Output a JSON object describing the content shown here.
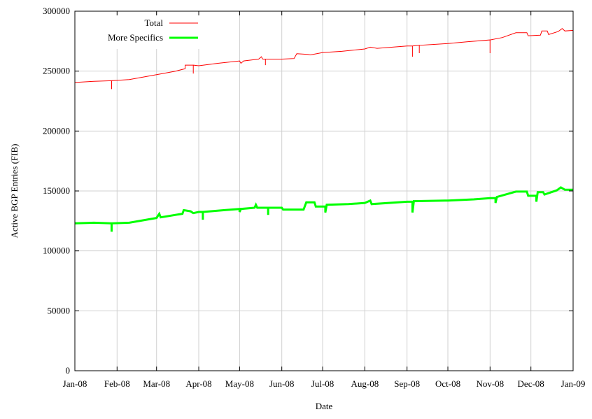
{
  "chart_data": {
    "type": "line",
    "title": "",
    "xlabel": "Date",
    "ylabel": "Active BGP Entries (FIB)",
    "xlim": [
      "2008-01-01",
      "2009-01-01"
    ],
    "ylim": [
      0,
      300000
    ],
    "grid": true,
    "legend_position": "top-left",
    "x_ticks": [
      {
        "date": "2008-01-01",
        "label": "Jan-08"
      },
      {
        "date": "2008-02-01",
        "label": "Feb-08"
      },
      {
        "date": "2008-03-01",
        "label": "Mar-08"
      },
      {
        "date": "2008-04-01",
        "label": "Apr-08"
      },
      {
        "date": "2008-05-01",
        "label": "May-08"
      },
      {
        "date": "2008-06-01",
        "label": "Jun-08"
      },
      {
        "date": "2008-07-01",
        "label": "Jul-08"
      },
      {
        "date": "2008-08-01",
        "label": "Aug-08"
      },
      {
        "date": "2008-09-01",
        "label": "Sep-08"
      },
      {
        "date": "2008-10-01",
        "label": "Oct-08"
      },
      {
        "date": "2008-11-01",
        "label": "Nov-08"
      },
      {
        "date": "2008-12-01",
        "label": "Dec-08"
      },
      {
        "date": "2009-01-01",
        "label": "Jan-09"
      }
    ],
    "y_ticks": [
      {
        "value": 0,
        "label": "0"
      },
      {
        "value": 50000,
        "label": "50000"
      },
      {
        "value": 100000,
        "label": "100000"
      },
      {
        "value": 150000,
        "label": "150000"
      },
      {
        "value": 200000,
        "label": "200000"
      },
      {
        "value": 250000,
        "label": "250000"
      },
      {
        "value": 300000,
        "label": "300000"
      }
    ],
    "series": [
      {
        "name": "Total",
        "color": "#ff0000",
        "points": [
          [
            "2008-01-01",
            240500
          ],
          [
            "2008-01-15",
            241500
          ],
          [
            "2008-01-28",
            242000
          ],
          [
            "2008-01-28",
            235000
          ],
          [
            "2008-01-28",
            242000
          ],
          [
            "2008-02-10",
            243000
          ],
          [
            "2008-03-01",
            247000
          ],
          [
            "2008-03-15",
            250000
          ],
          [
            "2008-03-22",
            252000
          ],
          [
            "2008-03-22",
            255000
          ],
          [
            "2008-03-28",
            255000
          ],
          [
            "2008-03-28",
            248000
          ],
          [
            "2008-03-28",
            255000
          ],
          [
            "2008-04-01",
            254500
          ],
          [
            "2008-04-15",
            256500
          ],
          [
            "2008-05-01",
            258500
          ],
          [
            "2008-05-02",
            256500
          ],
          [
            "2008-05-04",
            258500
          ],
          [
            "2008-05-15",
            260000
          ],
          [
            "2008-05-17",
            262000
          ],
          [
            "2008-05-18",
            260000
          ],
          [
            "2008-05-20",
            260000
          ],
          [
            "2008-05-20",
            255000
          ],
          [
            "2008-05-20",
            260000
          ],
          [
            "2008-06-01",
            260000
          ],
          [
            "2008-06-10",
            260500
          ],
          [
            "2008-06-12",
            264500
          ],
          [
            "2008-06-20",
            264000
          ],
          [
            "2008-06-22",
            263500
          ],
          [
            "2008-07-01",
            265500
          ],
          [
            "2008-07-15",
            266500
          ],
          [
            "2008-08-01",
            268500
          ],
          [
            "2008-08-05",
            270000
          ],
          [
            "2008-08-10",
            269000
          ],
          [
            "2008-09-01",
            271000
          ],
          [
            "2008-09-05",
            271000
          ],
          [
            "2008-09-05",
            262000
          ],
          [
            "2008-09-05",
            271000
          ],
          [
            "2008-09-10",
            271500
          ],
          [
            "2008-09-10",
            265000
          ],
          [
            "2008-09-10",
            271500
          ],
          [
            "2008-10-01",
            273000
          ],
          [
            "2008-10-15",
            274500
          ],
          [
            "2008-11-01",
            276000
          ],
          [
            "2008-11-01",
            265000
          ],
          [
            "2008-11-01",
            276000
          ],
          [
            "2008-11-10",
            278000
          ],
          [
            "2008-11-20",
            282000
          ],
          [
            "2008-11-28",
            282000
          ],
          [
            "2008-11-29",
            279500
          ],
          [
            "2008-12-08",
            280000
          ],
          [
            "2008-12-09",
            283500
          ],
          [
            "2008-12-13",
            283500
          ],
          [
            "2008-12-14",
            280500
          ],
          [
            "2008-12-21",
            283000
          ],
          [
            "2008-12-24",
            285500
          ],
          [
            "2008-12-26",
            283500
          ],
          [
            "2009-01-01",
            284000
          ]
        ]
      },
      {
        "name": "More Specifics",
        "color": "#00ff00",
        "points": [
          [
            "2008-01-01",
            123000
          ],
          [
            "2008-01-15",
            123500
          ],
          [
            "2008-01-28",
            123000
          ],
          [
            "2008-01-28",
            116000
          ],
          [
            "2008-01-28",
            123000
          ],
          [
            "2008-02-10",
            123500
          ],
          [
            "2008-03-01",
            127500
          ],
          [
            "2008-03-03",
            131000
          ],
          [
            "2008-03-04",
            128000
          ],
          [
            "2008-03-20",
            131000
          ],
          [
            "2008-03-21",
            134000
          ],
          [
            "2008-03-26",
            133000
          ],
          [
            "2008-03-28",
            131500
          ],
          [
            "2008-04-01",
            132500
          ],
          [
            "2008-04-04",
            132500
          ],
          [
            "2008-04-04",
            126000
          ],
          [
            "2008-04-04",
            132500
          ],
          [
            "2008-04-20",
            134000
          ],
          [
            "2008-05-01",
            135000
          ],
          [
            "2008-05-01",
            132500
          ],
          [
            "2008-05-02",
            135000
          ],
          [
            "2008-05-12",
            136000
          ],
          [
            "2008-05-13",
            138500
          ],
          [
            "2008-05-14",
            136000
          ],
          [
            "2008-05-22",
            136000
          ],
          [
            "2008-05-22",
            130000
          ],
          [
            "2008-05-22",
            136000
          ],
          [
            "2008-06-01",
            136000
          ],
          [
            "2008-06-02",
            134500
          ],
          [
            "2008-06-17",
            134500
          ],
          [
            "2008-06-19",
            140500
          ],
          [
            "2008-06-25",
            140500
          ],
          [
            "2008-06-26",
            137000
          ],
          [
            "2008-07-01",
            137000
          ],
          [
            "2008-07-03",
            137000
          ],
          [
            "2008-07-03",
            132000
          ],
          [
            "2008-07-04",
            138500
          ],
          [
            "2008-07-20",
            139000
          ],
          [
            "2008-08-01",
            140000
          ],
          [
            "2008-08-05",
            142000
          ],
          [
            "2008-08-06",
            139000
          ],
          [
            "2008-09-01",
            141000
          ],
          [
            "2008-09-05",
            141000
          ],
          [
            "2008-09-05",
            132000
          ],
          [
            "2008-09-06",
            141500
          ],
          [
            "2008-10-01",
            142000
          ],
          [
            "2008-10-20",
            143000
          ],
          [
            "2008-11-01",
            144000
          ],
          [
            "2008-11-05",
            144000
          ],
          [
            "2008-11-05",
            140000
          ],
          [
            "2008-11-06",
            145000
          ],
          [
            "2008-11-20",
            149500
          ],
          [
            "2008-11-28",
            149500
          ],
          [
            "2008-11-29",
            146000
          ],
          [
            "2008-12-05",
            146000
          ],
          [
            "2008-12-05",
            141000
          ],
          [
            "2008-12-06",
            149000
          ],
          [
            "2008-12-10",
            149000
          ],
          [
            "2008-12-11",
            147000
          ],
          [
            "2008-12-20",
            150500
          ],
          [
            "2008-12-23",
            153000
          ],
          [
            "2008-12-26",
            151000
          ],
          [
            "2009-01-01",
            151000
          ]
        ]
      }
    ]
  }
}
